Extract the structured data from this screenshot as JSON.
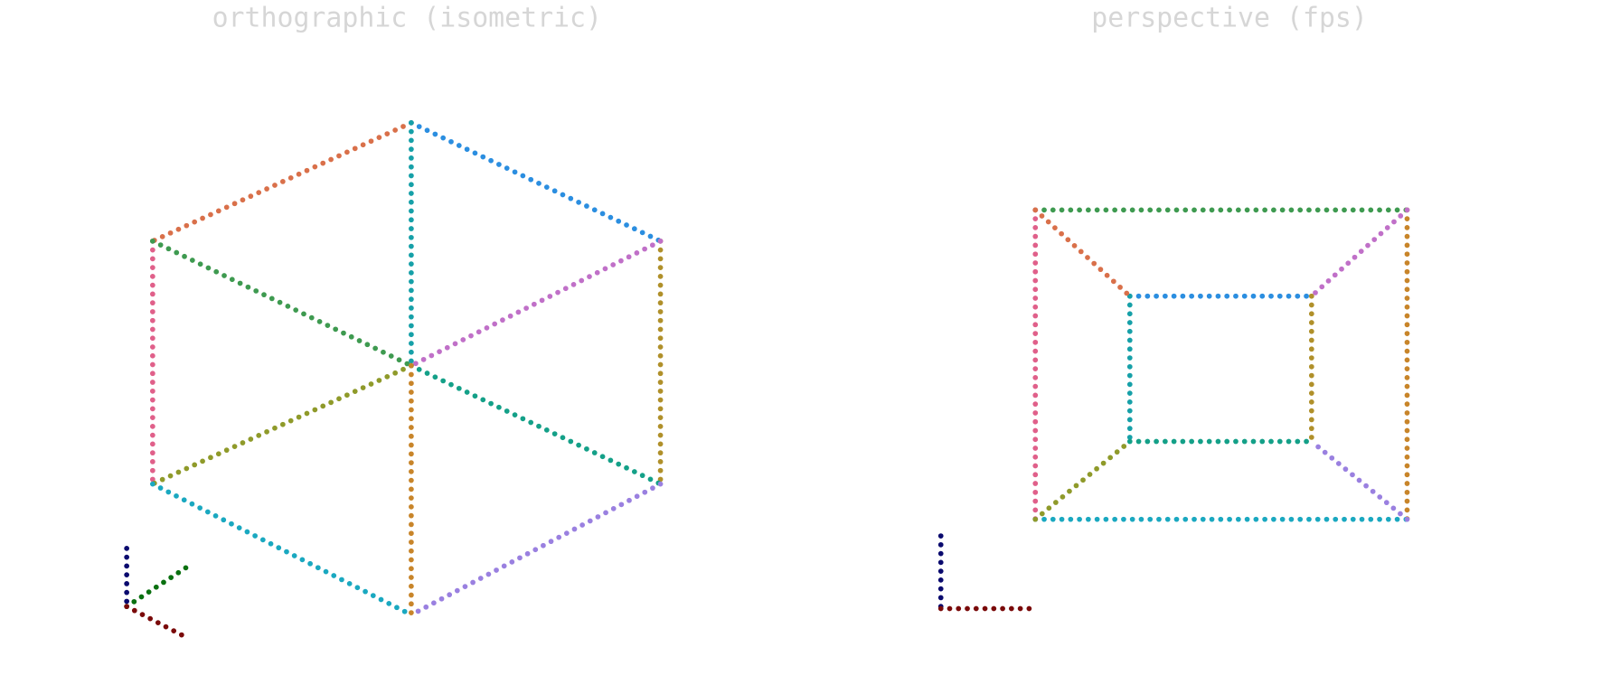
{
  "panels": [
    {
      "title": "orthographic (isometric)"
    },
    {
      "title": "perspective (fps)"
    }
  ]
}
